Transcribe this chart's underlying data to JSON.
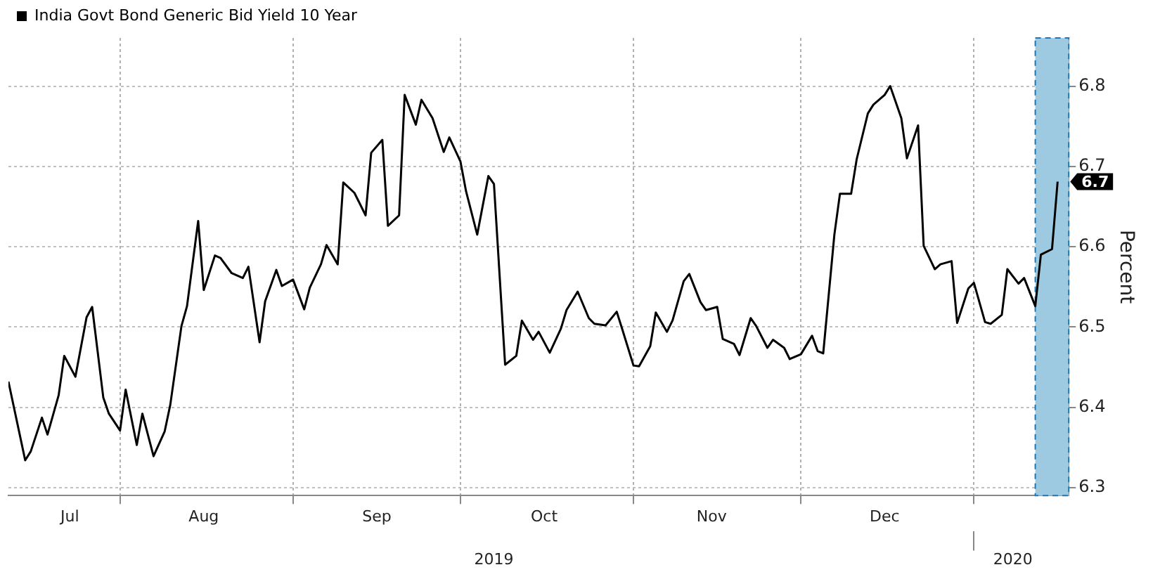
{
  "chart_data": {
    "type": "line",
    "ylabel": "Percent",
    "legend": "top left",
    "grid": true,
    "marker": "none",
    "line_style": "solid",
    "xlim": [
      "2019-07-12",
      "2020-01-18"
    ],
    "xticks": [
      {
        "value": "2019-07-23",
        "label": "Jul"
      },
      {
        "value": "2019-08-01",
        "label": null
      },
      {
        "value": "2019-08-16",
        "label": "Aug"
      },
      {
        "value": "2019-09-01",
        "label": null
      },
      {
        "value": "2019-09-16",
        "label": "Sep"
      },
      {
        "value": "2019-10-01",
        "label": null
      },
      {
        "value": "2019-10-16",
        "label": "Oct"
      },
      {
        "value": "2019-11-01",
        "label": null
      },
      {
        "value": "2019-11-15",
        "label": "Nov"
      },
      {
        "value": "2019-12-01",
        "label": null
      },
      {
        "value": "2019-12-16",
        "label": "Dec"
      },
      {
        "value": "2020-01-01",
        "label": null
      }
    ],
    "x2lim": [
      "2019-07-12",
      "2020-01-18"
    ],
    "x2ticks": [
      {
        "value": "2019-10-07",
        "label": "2019"
      },
      {
        "value": "2020-01-01",
        "label": null
      },
      {
        "value": "2020-01-08",
        "label": "2020"
      }
    ],
    "ylim": [
      6.29,
      6.86
    ],
    "yticks": [
      6.3,
      6.4,
      6.5,
      6.6,
      6.7,
      6.8
    ],
    "bands": [
      {
        "axis": "x",
        "from": "2020-01-12",
        "to": "2020-01-18",
        "color": "#9ecae1"
      }
    ],
    "series": [
      {
        "name": "India Govt Bond Generic Bid Yield 10 Year",
        "color": "#000000",
        "x": [
          "2019-07-12",
          "2019-07-15",
          "2019-07-16",
          "2019-07-18",
          "2019-07-19",
          "2019-07-21",
          "2019-07-22",
          "2019-07-24",
          "2019-07-26",
          "2019-07-27",
          "2019-07-29",
          "2019-07-30",
          "2019-08-01",
          "2019-08-02",
          "2019-08-04",
          "2019-08-05",
          "2019-08-07",
          "2019-08-09",
          "2019-08-10",
          "2019-08-12",
          "2019-08-13",
          "2019-08-15",
          "2019-08-16",
          "2019-08-18",
          "2019-08-19",
          "2019-08-21",
          "2019-08-23",
          "2019-08-24",
          "2019-08-26",
          "2019-08-27",
          "2019-08-29",
          "2019-08-30",
          "2019-09-01",
          "2019-09-03",
          "2019-09-04",
          "2019-09-06",
          "2019-09-07",
          "2019-09-09",
          "2019-09-10",
          "2019-09-12",
          "2019-09-14",
          "2019-09-15",
          "2019-09-17",
          "2019-09-18",
          "2019-09-20",
          "2019-09-21",
          "2019-09-23",
          "2019-09-24",
          "2019-09-26",
          "2019-09-28",
          "2019-09-29",
          "2019-10-01",
          "2019-10-02",
          "2019-10-04",
          "2019-10-06",
          "2019-10-07",
          "2019-10-09",
          "2019-10-11",
          "2019-10-12",
          "2019-10-14",
          "2019-10-15",
          "2019-10-17",
          "2019-10-19",
          "2019-10-20",
          "2019-10-22",
          "2019-10-24",
          "2019-10-25",
          "2019-10-27",
          "2019-10-29",
          "2019-10-30",
          "2019-11-01",
          "2019-11-02",
          "2019-11-04",
          "2019-11-05",
          "2019-11-07",
          "2019-11-08",
          "2019-11-10",
          "2019-11-11",
          "2019-11-13",
          "2019-11-14",
          "2019-11-16",
          "2019-11-17",
          "2019-11-19",
          "2019-11-20",
          "2019-11-22",
          "2019-11-23",
          "2019-11-25",
          "2019-11-26",
          "2019-11-28",
          "2019-11-29",
          "2019-12-01",
          "2019-12-03",
          "2019-12-04",
          "2019-12-05",
          "2019-12-07",
          "2019-12-08",
          "2019-12-10",
          "2019-12-11",
          "2019-12-13",
          "2019-12-14",
          "2019-12-16",
          "2019-12-17",
          "2019-12-19",
          "2019-12-20",
          "2019-12-22",
          "2019-12-23",
          "2019-12-25",
          "2019-12-26",
          "2019-12-28",
          "2019-12-29",
          "2019-12-31",
          "2020-01-01",
          "2020-01-03",
          "2020-01-04",
          "2020-01-06",
          "2020-01-07",
          "2020-01-09",
          "2020-01-10",
          "2020-01-12",
          "2020-01-13",
          "2020-01-15",
          "2020-01-16"
        ],
        "values": [
          6.432,
          6.334,
          6.345,
          6.387,
          6.366,
          6.415,
          6.464,
          6.438,
          6.512,
          6.525,
          6.412,
          6.392,
          6.371,
          6.422,
          6.353,
          6.392,
          6.339,
          6.37,
          6.403,
          6.501,
          6.526,
          6.632,
          6.546,
          6.589,
          6.586,
          6.567,
          6.561,
          6.575,
          6.481,
          6.532,
          6.571,
          6.551,
          6.559,
          6.522,
          6.549,
          6.578,
          6.602,
          6.578,
          6.68,
          6.667,
          6.639,
          6.717,
          6.733,
          6.626,
          6.639,
          6.789,
          6.752,
          6.783,
          6.76,
          6.718,
          6.736,
          6.706,
          6.669,
          6.615,
          6.688,
          6.678,
          6.453,
          6.464,
          6.508,
          6.484,
          6.494,
          6.468,
          6.498,
          6.521,
          6.544,
          6.511,
          6.504,
          6.502,
          6.519,
          6.497,
          6.452,
          6.451,
          6.476,
          6.518,
          6.494,
          6.508,
          6.557,
          6.566,
          6.531,
          6.521,
          6.525,
          6.485,
          6.479,
          6.465,
          6.511,
          6.501,
          6.474,
          6.484,
          6.474,
          6.46,
          6.466,
          6.489,
          6.47,
          6.467,
          6.615,
          6.666,
          6.666,
          6.709,
          6.766,
          6.777,
          6.789,
          6.8,
          6.76,
          6.71,
          6.751,
          6.601,
          6.572,
          6.578,
          6.582,
          6.505,
          6.548,
          6.555,
          6.506,
          6.504,
          6.515,
          6.572,
          6.554,
          6.561,
          6.526,
          6.59,
          6.597,
          6.681
        ],
        "value_labels": [
          null,
          null,
          null,
          null,
          null,
          null,
          null,
          null,
          null,
          null,
          null,
          null,
          null,
          null,
          null,
          null,
          null,
          null,
          null,
          null,
          null,
          null,
          null,
          null,
          null,
          null,
          null,
          null,
          null,
          null,
          null,
          null,
          null,
          null,
          null,
          null,
          null,
          null,
          null,
          null,
          null,
          null,
          null,
          null,
          null,
          null,
          null,
          null,
          null,
          null,
          null,
          null,
          null,
          null,
          null,
          null,
          null,
          null,
          null,
          null,
          null,
          null,
          null,
          null,
          null,
          null,
          null,
          null,
          null,
          null,
          null,
          null,
          null,
          null,
          null,
          null,
          null,
          null,
          null,
          null,
          null,
          null,
          null,
          null,
          null,
          null,
          null,
          null,
          null,
          null,
          null,
          null,
          null,
          null,
          null,
          null,
          null,
          null,
          null,
          null,
          null,
          null,
          null,
          null,
          null,
          null,
          null,
          null,
          null,
          null,
          null,
          null,
          null,
          null,
          null,
          null,
          null,
          null,
          null,
          null,
          null,
          "6.7"
        ]
      }
    ]
  }
}
